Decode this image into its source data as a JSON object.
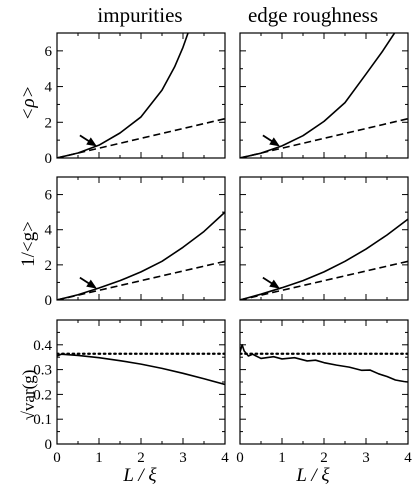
{
  "columns": [
    "impurities",
    "edge roughness"
  ],
  "row_labels": [
    "<ρ>",
    "1/<g>",
    "√var(g)"
  ],
  "x_axis_label": "L / ξ",
  "chart_data": [
    {
      "id": "rho-impurities",
      "type": "line",
      "title": "impurities",
      "ylabel": "<ρ>",
      "xlim": [
        0,
        4
      ],
      "ylim": [
        0,
        7
      ],
      "xticks": [
        0,
        1,
        2,
        3,
        4
      ],
      "yticks": [
        0,
        2,
        4,
        6
      ],
      "grid": false,
      "series": [
        {
          "style": "solid",
          "x": [
            0,
            0.5,
            1.0,
            1.5,
            2.0,
            2.5,
            2.8,
            3.0,
            3.12
          ],
          "y": [
            0,
            0.28,
            0.72,
            1.4,
            2.3,
            3.8,
            5.1,
            6.2,
            7.0
          ]
        },
        {
          "style": "dashed",
          "x": [
            0,
            4
          ],
          "y": [
            0,
            2.2
          ]
        }
      ],
      "annotations": [
        {
          "type": "arrow",
          "x": 0.95,
          "y": 0.65
        }
      ]
    },
    {
      "id": "rho-edge",
      "type": "line",
      "title": "edge roughness",
      "ylabel": "",
      "xlim": [
        0,
        4
      ],
      "ylim": [
        0,
        7
      ],
      "xticks": [
        0,
        1,
        2,
        3,
        4
      ],
      "yticks": [
        0,
        2,
        4,
        6
      ],
      "grid": false,
      "series": [
        {
          "style": "solid",
          "x": [
            0,
            0.5,
            1.0,
            1.5,
            2.0,
            2.5,
            3.0,
            3.4,
            3.68
          ],
          "y": [
            0,
            0.27,
            0.68,
            1.25,
            2.05,
            3.1,
            4.7,
            6.0,
            7.0
          ]
        },
        {
          "style": "dashed",
          "x": [
            0,
            4
          ],
          "y": [
            0,
            2.2
          ]
        }
      ],
      "annotations": [
        {
          "type": "arrow",
          "x": 0.95,
          "y": 0.65
        }
      ]
    },
    {
      "id": "inv-g-impurities",
      "type": "line",
      "ylabel": "1/<g>",
      "xlim": [
        0,
        4
      ],
      "ylim": [
        0,
        7
      ],
      "xticks": [
        0,
        1,
        2,
        3,
        4
      ],
      "yticks": [
        0,
        2,
        4,
        6
      ],
      "grid": false,
      "series": [
        {
          "style": "solid",
          "x": [
            0,
            0.5,
            1.0,
            1.5,
            2.0,
            2.5,
            3.0,
            3.5,
            4.0
          ],
          "y": [
            0,
            0.3,
            0.68,
            1.1,
            1.6,
            2.2,
            3.0,
            3.9,
            5.0
          ]
        },
        {
          "style": "dashed",
          "x": [
            0,
            4
          ],
          "y": [
            0,
            2.2
          ]
        }
      ],
      "annotations": [
        {
          "type": "arrow",
          "x": 0.95,
          "y": 0.65
        }
      ]
    },
    {
      "id": "inv-g-edge",
      "type": "line",
      "ylabel": "",
      "xlim": [
        0,
        4
      ],
      "ylim": [
        0,
        7
      ],
      "xticks": [
        0,
        1,
        2,
        3,
        4
      ],
      "yticks": [
        0,
        2,
        4,
        6
      ],
      "grid": false,
      "series": [
        {
          "style": "solid",
          "x": [
            0,
            0.5,
            1.0,
            1.5,
            2.0,
            2.5,
            3.0,
            3.5,
            4.0
          ],
          "y": [
            0,
            0.33,
            0.7,
            1.1,
            1.6,
            2.2,
            2.9,
            3.7,
            4.6
          ]
        },
        {
          "style": "dashed",
          "x": [
            0,
            4
          ],
          "y": [
            0,
            2.2
          ]
        }
      ],
      "annotations": [
        {
          "type": "arrow",
          "x": 0.95,
          "y": 0.65
        }
      ]
    },
    {
      "id": "var-g-impurities",
      "type": "line",
      "ylabel": "√var(g)",
      "xlim": [
        0,
        4
      ],
      "ylim": [
        0,
        0.5
      ],
      "xticks": [
        0,
        1,
        2,
        3,
        4
      ],
      "yticks": [
        0,
        0.1,
        0.2,
        0.3,
        0.4
      ],
      "grid": false,
      "series": [
        {
          "style": "solid",
          "x": [
            0,
            0.1,
            0.5,
            1.0,
            1.5,
            2.0,
            2.5,
            3.0,
            3.5,
            4.0
          ],
          "y": [
            0.355,
            0.362,
            0.357,
            0.348,
            0.336,
            0.322,
            0.305,
            0.285,
            0.263,
            0.24
          ]
        },
        {
          "style": "dotted",
          "x": [
            0,
            4
          ],
          "y": [
            0.364,
            0.364
          ]
        }
      ]
    },
    {
      "id": "var-g-edge",
      "type": "line",
      "ylabel": "",
      "xlim": [
        0,
        4
      ],
      "ylim": [
        0,
        0.5
      ],
      "xticks": [
        0,
        1,
        2,
        3,
        4
      ],
      "yticks": [
        0,
        0.1,
        0.2,
        0.3,
        0.4
      ],
      "grid": false,
      "series": [
        {
          "style": "solid",
          "x": [
            0,
            0.05,
            0.1,
            0.2,
            0.3,
            0.5,
            0.8,
            1.0,
            1.3,
            1.6,
            1.8,
            2.0,
            2.3,
            2.6,
            2.9,
            3.1,
            3.3,
            3.5,
            3.7,
            3.9,
            4.0
          ],
          "y": [
            0.37,
            0.4,
            0.375,
            0.355,
            0.362,
            0.345,
            0.352,
            0.343,
            0.348,
            0.335,
            0.338,
            0.328,
            0.318,
            0.31,
            0.297,
            0.298,
            0.283,
            0.272,
            0.258,
            0.252,
            0.25
          ]
        },
        {
          "style": "dotted",
          "x": [
            0,
            4
          ],
          "y": [
            0.364,
            0.364
          ]
        }
      ]
    }
  ]
}
